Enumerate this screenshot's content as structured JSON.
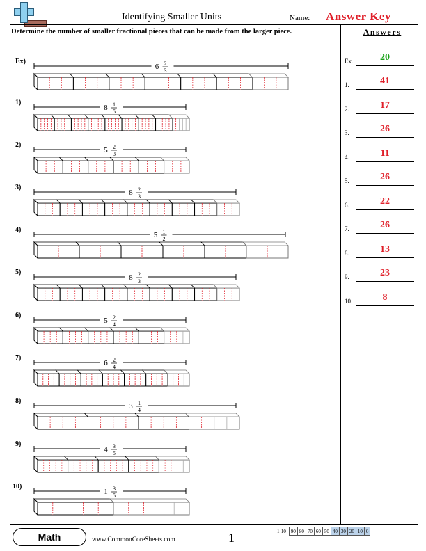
{
  "header": {
    "title": "Identifying Smaller Units",
    "name_label": "Name:",
    "answer_key": "Answer Key",
    "instructions": "Determine the number of smaller fractional pieces that can be made from the larger piece."
  },
  "answers_title": "Answers",
  "problems": [
    {
      "label": "Ex)",
      "whole": "6",
      "num": "2",
      "den": "3",
      "answer": "20",
      "num_label": "Ex."
    },
    {
      "label": "1)",
      "whole": "8",
      "num": "1",
      "den": "5",
      "answer": "41",
      "num_label": "1."
    },
    {
      "label": "2)",
      "whole": "5",
      "num": "2",
      "den": "3",
      "answer": "17",
      "num_label": "2."
    },
    {
      "label": "3)",
      "whole": "8",
      "num": "2",
      "den": "3",
      "answer": "26",
      "num_label": "3."
    },
    {
      "label": "4)",
      "whole": "5",
      "num": "1",
      "den": "2",
      "answer": "11",
      "num_label": "4."
    },
    {
      "label": "5)",
      "whole": "8",
      "num": "2",
      "den": "3",
      "answer": "26",
      "num_label": "5."
    },
    {
      "label": "6)",
      "whole": "5",
      "num": "2",
      "den": "4",
      "answer": "22",
      "num_label": "6."
    },
    {
      "label": "7)",
      "whole": "6",
      "num": "2",
      "den": "4",
      "answer": "26",
      "num_label": "7."
    },
    {
      "label": "8)",
      "whole": "3",
      "num": "1",
      "den": "4",
      "answer": "13",
      "num_label": "8."
    },
    {
      "label": "9)",
      "whole": "4",
      "num": "3",
      "den": "5",
      "answer": "23",
      "num_label": "9."
    },
    {
      "label": "10)",
      "whole": "1",
      "num": "3",
      "den": "5",
      "answer": "8",
      "num_label": "10."
    }
  ],
  "footer": {
    "subject": "Math",
    "site": "www.CommonCoreSheets.com",
    "page": "1",
    "score_label": "1-10",
    "scores": [
      "90",
      "80",
      "70",
      "60",
      "50",
      "40",
      "30",
      "20",
      "10",
      "0"
    ]
  },
  "colors": {
    "answer_key": "#e0202a",
    "answer": "#e0202a",
    "example_answer": "#1aa31a",
    "divider_lines": "#e0202a",
    "score_shade": "#bcd3ea"
  }
}
